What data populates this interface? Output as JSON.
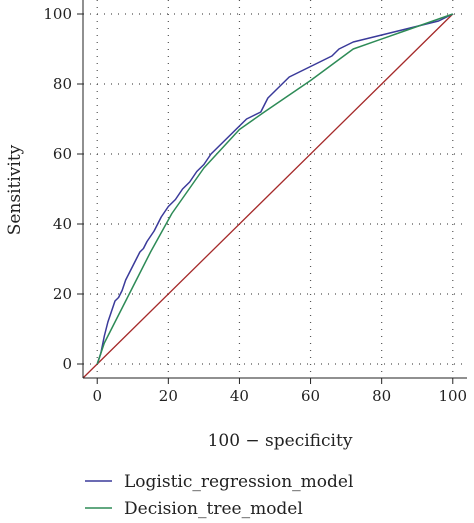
{
  "chart_data": {
    "type": "line",
    "xlabel": "100 − specificity",
    "ylabel": "Sensitivity",
    "xlim": [
      -4,
      104
    ],
    "ylim": [
      -4,
      104
    ],
    "x_ticks": [
      0,
      20,
      40,
      60,
      80,
      100
    ],
    "y_ticks": [
      0,
      20,
      40,
      60,
      80,
      100
    ],
    "grid": "dotted",
    "legend_position": "bottom",
    "series": [
      {
        "name": "Logistic_regression_model",
        "color": "#3a3a9a",
        "x": [
          0,
          1,
          2,
          3,
          4,
          5,
          6,
          7,
          8,
          9,
          10,
          11,
          12,
          13,
          14,
          16,
          18,
          20,
          22,
          24,
          26,
          28,
          30,
          32,
          34,
          36,
          38,
          40,
          42,
          44,
          46,
          47,
          48,
          50,
          52,
          54,
          56,
          58,
          60,
          62,
          64,
          66,
          68,
          70,
          72,
          76,
          80,
          84,
          88,
          92,
          96,
          100
        ],
        "y": [
          0,
          3,
          8,
          12,
          15,
          18,
          19,
          21,
          24,
          26,
          28,
          30,
          32,
          33,
          35,
          38,
          42,
          45,
          47,
          50,
          52,
          55,
          57,
          60,
          62,
          64,
          66,
          68,
          70,
          71,
          72,
          74,
          76,
          78,
          80,
          82,
          83,
          84,
          85,
          86,
          87,
          88,
          90,
          91,
          92,
          93,
          94,
          95,
          96,
          97,
          98,
          100
        ]
      },
      {
        "name": "Decision_tree_model",
        "color": "#2e8b57",
        "x": [
          0,
          2,
          5,
          10,
          15,
          21,
          30,
          40,
          47,
          60,
          72,
          86,
          100
        ],
        "y": [
          0,
          6,
          12,
          22,
          32,
          43,
          56,
          67,
          72,
          81,
          90,
          95,
          100
        ]
      },
      {
        "name": "",
        "color": "#a52a2a",
        "x": [
          -4,
          100
        ],
        "y": [
          -4,
          100
        ]
      }
    ]
  }
}
